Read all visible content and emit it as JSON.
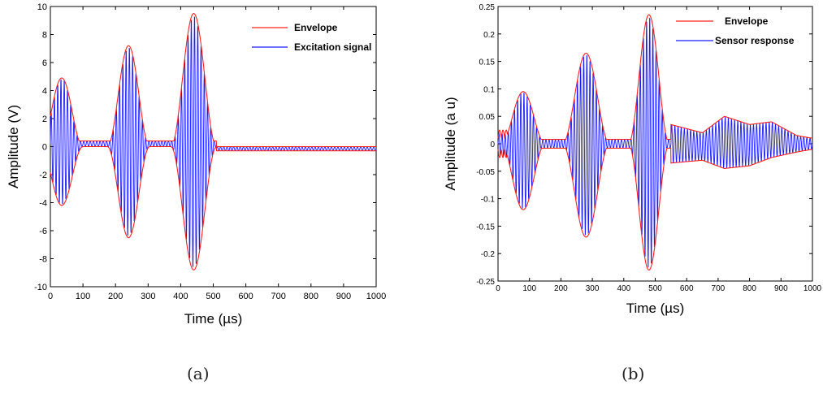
{
  "captions": [
    "(a)",
    "(b)"
  ],
  "chart_data": [
    {
      "type": "line",
      "title": "",
      "xlabel": "Time  (µs)",
      "ylabel": "Amplitude  (V)",
      "xlim": [
        0,
        1000
      ],
      "ylim": [
        -10,
        10
      ],
      "xticks": [
        0,
        100,
        200,
        300,
        400,
        500,
        600,
        700,
        800,
        900,
        1000
      ],
      "yticks": [
        -10,
        -8,
        -6,
        -4,
        -2,
        0,
        2,
        4,
        6,
        8,
        10
      ],
      "legend": {
        "placement": "top-right",
        "entries": [
          "Envelope",
          "Excitation signal"
        ]
      },
      "colors": {
        "envelope": "#ff2020",
        "signal": "#1a1aff"
      },
      "baseline": 0.4,
      "tail_level": -0.3,
      "tail_start": 510,
      "bursts": [
        {
          "center": 35,
          "half_width": 65,
          "peak_pos": 4.9,
          "peak_neg": -4.2
        },
        {
          "center": 240,
          "half_width": 65,
          "peak_pos": 7.2,
          "peak_neg": -6.5
        },
        {
          "center": 440,
          "half_width": 70,
          "peak_pos": 9.5,
          "peak_neg": -8.8
        }
      ],
      "series": [
        {
          "name": "Envelope"
        },
        {
          "name": "Excitation signal"
        }
      ]
    },
    {
      "type": "line",
      "title": "",
      "xlabel": "Time  (µs)",
      "ylabel": "Amplitude (a u)",
      "xlim": [
        0,
        1000
      ],
      "ylim": [
        -0.25,
        0.25
      ],
      "xticks": [
        0,
        100,
        200,
        300,
        400,
        500,
        600,
        700,
        800,
        900,
        1000
      ],
      "yticks": [
        -0.25,
        -0.2,
        -0.15,
        -0.1,
        -0.05,
        0,
        0.05,
        0.1,
        0.15,
        0.2,
        0.25
      ],
      "legend": {
        "placement": "top-right",
        "entries": [
          "Envelope",
          "Sensor response"
        ]
      },
      "colors": {
        "envelope": "#ff2020",
        "signal": "#1a1aff"
      },
      "baseline": 0,
      "bursts": [
        {
          "center": 80,
          "half_width": 70,
          "peak_pos": 0.095,
          "peak_neg": -0.12
        },
        {
          "center": 280,
          "half_width": 75,
          "peak_pos": 0.165,
          "peak_neg": -0.17
        },
        {
          "center": 480,
          "half_width": 65,
          "peak_pos": 0.235,
          "peak_neg": -0.23
        }
      ],
      "tail": [
        {
          "x": 550,
          "upper": 0.035,
          "lower": -0.035
        },
        {
          "x": 650,
          "upper": 0.02,
          "lower": -0.03
        },
        {
          "x": 720,
          "upper": 0.05,
          "lower": -0.045
        },
        {
          "x": 800,
          "upper": 0.035,
          "lower": -0.04
        },
        {
          "x": 870,
          "upper": 0.04,
          "lower": -0.025
        },
        {
          "x": 950,
          "upper": 0.015,
          "lower": -0.015
        },
        {
          "x": 1000,
          "upper": 0.01,
          "lower": -0.01
        }
      ],
      "series": [
        {
          "name": "Envelope"
        },
        {
          "name": "Sensor response"
        }
      ]
    }
  ]
}
